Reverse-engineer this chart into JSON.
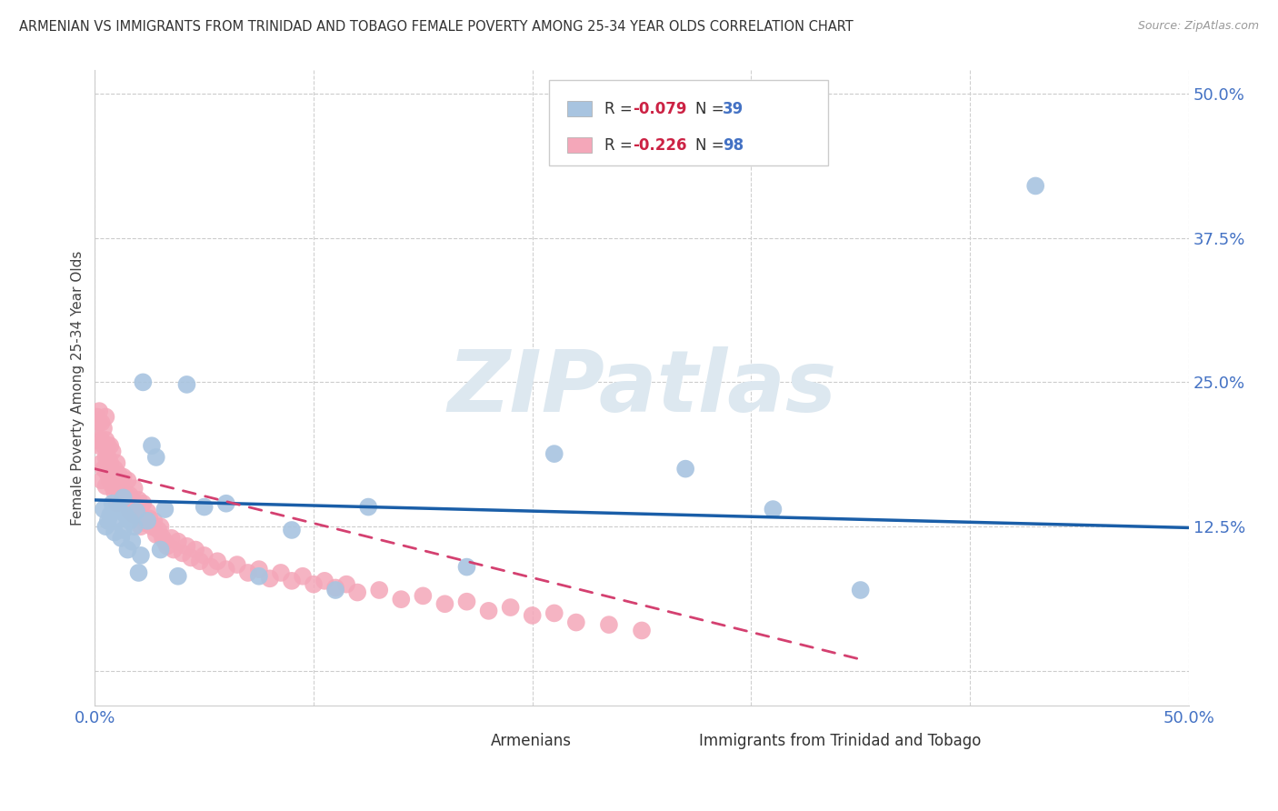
{
  "title": "ARMENIAN VS IMMIGRANTS FROM TRINIDAD AND TOBAGO FEMALE POVERTY AMONG 25-34 YEAR OLDS CORRELATION CHART",
  "source": "Source: ZipAtlas.com",
  "ylabel": "Female Poverty Among 25-34 Year Olds",
  "xlim": [
    0.0,
    0.5
  ],
  "ylim": [
    -0.03,
    0.52
  ],
  "ytick_vals": [
    0.0,
    0.125,
    0.25,
    0.375,
    0.5
  ],
  "ytick_labels": [
    "",
    "12.5%",
    "25.0%",
    "37.5%",
    "50.0%"
  ],
  "xtick_vals": [
    0.0,
    0.1,
    0.2,
    0.3,
    0.4,
    0.5
  ],
  "xtick_labels": [
    "0.0%",
    "",
    "",
    "",
    "",
    "50.0%"
  ],
  "legend_r1": "-0.079",
  "legend_n1": "39",
  "legend_r2": "-0.226",
  "legend_n2": "98",
  "color_armenian": "#a8c4e0",
  "color_tt": "#f4a7b9",
  "color_line_armenian": "#1a5ea8",
  "color_line_tt": "#d44070",
  "watermark_color": "#dde8f0",
  "armenian_x": [
    0.004,
    0.005,
    0.006,
    0.007,
    0.008,
    0.009,
    0.01,
    0.011,
    0.012,
    0.013,
    0.013,
    0.014,
    0.015,
    0.016,
    0.017,
    0.018,
    0.019,
    0.02,
    0.021,
    0.022,
    0.024,
    0.026,
    0.028,
    0.03,
    0.032,
    0.038,
    0.042,
    0.05,
    0.06,
    0.075,
    0.09,
    0.11,
    0.125,
    0.17,
    0.21,
    0.27,
    0.31,
    0.35,
    0.43
  ],
  "armenian_y": [
    0.14,
    0.125,
    0.13,
    0.135,
    0.145,
    0.12,
    0.13,
    0.14,
    0.115,
    0.15,
    0.122,
    0.135,
    0.105,
    0.13,
    0.112,
    0.125,
    0.138,
    0.085,
    0.1,
    0.25,
    0.13,
    0.195,
    0.185,
    0.105,
    0.14,
    0.082,
    0.248,
    0.142,
    0.145,
    0.082,
    0.122,
    0.07,
    0.142,
    0.09,
    0.188,
    0.175,
    0.14,
    0.07,
    0.42
  ],
  "tt_x": [
    0.001,
    0.001,
    0.002,
    0.002,
    0.002,
    0.003,
    0.003,
    0.003,
    0.003,
    0.004,
    0.004,
    0.004,
    0.005,
    0.005,
    0.005,
    0.005,
    0.005,
    0.006,
    0.006,
    0.006,
    0.007,
    0.007,
    0.007,
    0.008,
    0.008,
    0.008,
    0.009,
    0.009,
    0.01,
    0.01,
    0.01,
    0.011,
    0.011,
    0.012,
    0.012,
    0.013,
    0.013,
    0.014,
    0.015,
    0.015,
    0.016,
    0.016,
    0.017,
    0.018,
    0.018,
    0.019,
    0.02,
    0.02,
    0.021,
    0.022,
    0.022,
    0.023,
    0.024,
    0.025,
    0.026,
    0.027,
    0.028,
    0.029,
    0.03,
    0.031,
    0.032,
    0.033,
    0.035,
    0.036,
    0.038,
    0.04,
    0.042,
    0.044,
    0.046,
    0.048,
    0.05,
    0.053,
    0.056,
    0.06,
    0.065,
    0.07,
    0.075,
    0.08,
    0.085,
    0.09,
    0.095,
    0.1,
    0.105,
    0.11,
    0.115,
    0.12,
    0.13,
    0.14,
    0.15,
    0.16,
    0.17,
    0.18,
    0.19,
    0.2,
    0.21,
    0.22,
    0.235,
    0.25
  ],
  "tt_y": [
    0.2,
    0.22,
    0.195,
    0.215,
    0.225,
    0.18,
    0.2,
    0.215,
    0.165,
    0.195,
    0.21,
    0.175,
    0.175,
    0.2,
    0.185,
    0.16,
    0.22,
    0.185,
    0.195,
    0.17,
    0.18,
    0.195,
    0.165,
    0.17,
    0.19,
    0.16,
    0.175,
    0.155,
    0.18,
    0.165,
    0.145,
    0.17,
    0.155,
    0.162,
    0.148,
    0.155,
    0.168,
    0.152,
    0.145,
    0.165,
    0.152,
    0.138,
    0.148,
    0.158,
    0.135,
    0.142,
    0.148,
    0.135,
    0.125,
    0.145,
    0.132,
    0.128,
    0.138,
    0.132,
    0.125,
    0.13,
    0.118,
    0.122,
    0.125,
    0.115,
    0.112,
    0.108,
    0.115,
    0.105,
    0.112,
    0.102,
    0.108,
    0.098,
    0.105,
    0.095,
    0.1,
    0.09,
    0.095,
    0.088,
    0.092,
    0.085,
    0.088,
    0.08,
    0.085,
    0.078,
    0.082,
    0.075,
    0.078,
    0.072,
    0.075,
    0.068,
    0.07,
    0.062,
    0.065,
    0.058,
    0.06,
    0.052,
    0.055,
    0.048,
    0.05,
    0.042,
    0.04,
    0.035
  ],
  "arm_line_x": [
    0.0,
    0.5
  ],
  "arm_line_y": [
    0.148,
    0.124
  ],
  "tt_line_x": [
    0.0,
    0.35
  ],
  "tt_line_y": [
    0.175,
    0.01
  ]
}
